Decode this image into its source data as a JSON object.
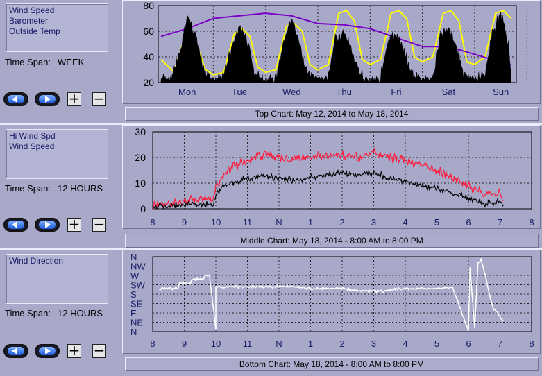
{
  "panels": {
    "top": {
      "legend": [
        "Wind Speed",
        "Barometer",
        "Outside Temp"
      ],
      "time_span_label": "Time Span:",
      "time_span_value": "WEEK",
      "caption": "Top Chart:  May 12, 2014  to  May 18, 2014"
    },
    "middle": {
      "legend": [
        "Hi Wind Spd",
        "Wind Speed"
      ],
      "time_span_label": "Time Span:",
      "time_span_value": "12 HOURS",
      "caption": "Middle Chart:  May 18, 2014 - 8:00 AM  to  8:00 PM"
    },
    "bottom": {
      "legend": [
        "Wind Direction"
      ],
      "time_span_label": "Time Span:",
      "time_span_value": "12 HOURS",
      "caption": "Bottom Chart:  May 18, 2014 - 8:00 AM  to  8:00 PM"
    }
  },
  "buttons": {
    "plus": "+",
    "minus": "−"
  },
  "colors": {
    "background": "#a8a8c8",
    "plot_area": "#a8a8c8",
    "wind_speed": "#000000",
    "barometer": "#7a00c8",
    "outside_temp": "#ffff00",
    "hi_wind": "#ff1a3a",
    "wind_direction": "#ffffff",
    "axis_text": "#1a1a66"
  },
  "chart_data": [
    {
      "id": "top",
      "type": "line",
      "x_categories": [
        "Mon",
        "Tue",
        "Wed",
        "Thu",
        "Fri",
        "Sat",
        "Sun"
      ],
      "y_ticks": [
        20,
        40,
        60,
        80
      ],
      "ylim": [
        20,
        80
      ],
      "grid": true,
      "series": [
        {
          "name": "Outside Temp",
          "color": "#ffff00",
          "x": [
            0,
            0.25,
            0.4,
            0.55,
            0.7,
            0.85,
            1.0,
            1.2,
            1.4,
            1.55,
            1.7,
            1.85,
            2.0,
            2.2,
            2.4,
            2.55,
            2.7,
            2.85,
            3.0,
            3.2,
            3.4,
            3.55,
            3.7,
            3.85,
            4.0,
            4.2,
            4.4,
            4.55,
            4.7,
            4.85,
            5.0,
            5.2,
            5.4,
            5.55,
            5.7,
            5.85,
            6.0,
            6.2,
            6.4,
            6.55,
            6.7
          ],
          "values": [
            38,
            28,
            48,
            52,
            48,
            30,
            26,
            28,
            58,
            62,
            56,
            32,
            28,
            30,
            64,
            66,
            60,
            34,
            30,
            34,
            74,
            76,
            68,
            38,
            34,
            38,
            74,
            76,
            70,
            40,
            36,
            40,
            74,
            76,
            68,
            36,
            34,
            40,
            74,
            76,
            70
          ]
        },
        {
          "name": "Barometer",
          "color": "#7a00c8",
          "x": [
            0,
            0.5,
            1.0,
            1.5,
            2.0,
            2.5,
            3.0,
            3.5,
            4.0,
            4.5,
            5.0,
            5.5,
            6.0,
            6.5,
            6.7
          ],
          "values": [
            56,
            62,
            70,
            72,
            74,
            72,
            66,
            65,
            62,
            55,
            48,
            48,
            42,
            36,
            34
          ]
        },
        {
          "name": "Wind Speed",
          "color": "#000000",
          "x": [
            0,
            0.2,
            0.35,
            0.5,
            0.65,
            0.8,
            1.0,
            1.2,
            1.35,
            1.5,
            1.65,
            1.8,
            2.0,
            2.2,
            2.35,
            2.5,
            2.65,
            2.8,
            3.0,
            3.2,
            3.35,
            3.5,
            3.65,
            3.8,
            4.0,
            4.2,
            4.35,
            4.5,
            4.65,
            4.8,
            5.0,
            5.2,
            5.35,
            5.5,
            5.65,
            5.8,
            6.0,
            6.2,
            6.35,
            6.5,
            6.65,
            6.7
          ],
          "values": [
            22,
            24,
            40,
            72,
            60,
            30,
            22,
            24,
            48,
            66,
            52,
            26,
            21,
            24,
            52,
            70,
            50,
            28,
            22,
            24,
            56,
            58,
            44,
            26,
            22,
            24,
            52,
            58,
            46,
            26,
            22,
            24,
            58,
            64,
            48,
            26,
            22,
            26,
            60,
            74,
            50,
            22
          ]
        }
      ]
    },
    {
      "id": "middle",
      "type": "line",
      "x_tick_labels": [
        "8",
        "9",
        "10",
        "11",
        "N",
        "1",
        "2",
        "3",
        "4",
        "5",
        "6",
        "7",
        "8"
      ],
      "y_ticks": [
        0,
        10,
        20,
        30
      ],
      "ylim": [
        0,
        30
      ],
      "grid": true,
      "series": [
        {
          "name": "Hi Wind Spd",
          "color": "#ff1a3a",
          "x": [
            8,
            8.5,
            9,
            9.5,
            9.9,
            10.0,
            10.2,
            10.5,
            11,
            11.5,
            12,
            12.5,
            13,
            13.5,
            14,
            14.5,
            15,
            15.5,
            16,
            16.5,
            17,
            17.5,
            18,
            18.5,
            19,
            19.1
          ],
          "values": [
            1.5,
            2,
            3,
            4,
            3,
            8,
            13,
            16,
            19,
            21,
            20,
            19,
            20,
            21,
            21,
            20,
            22,
            20,
            19,
            17,
            15,
            12,
            9,
            6,
            6,
            3
          ]
        },
        {
          "name": "Wind Speed",
          "color": "#000000",
          "x": [
            8,
            8.5,
            9,
            9.5,
            9.9,
            10.0,
            10.2,
            10.5,
            11,
            11.5,
            12,
            12.5,
            13,
            13.5,
            14,
            14.5,
            15,
            15.5,
            16,
            16.5,
            17,
            17.5,
            18,
            18.5,
            19,
            19.1
          ],
          "values": [
            0.5,
            1,
            1.5,
            2,
            1.5,
            5,
            9,
            10,
            12,
            13,
            12,
            11,
            12,
            13,
            14,
            13,
            14,
            12,
            11,
            9,
            8,
            6,
            4,
            2,
            3,
            1
          ]
        }
      ]
    },
    {
      "id": "bottom",
      "type": "line",
      "x_tick_labels": [
        "8",
        "9",
        "10",
        "11",
        "N",
        "1",
        "2",
        "3",
        "4",
        "5",
        "6",
        "7",
        "8"
      ],
      "y_tick_labels": [
        "N",
        "NW",
        "W",
        "SW",
        "S",
        "SE",
        "E",
        "NE",
        "N"
      ],
      "grid": true,
      "series": [
        {
          "name": "Wind Direction",
          "color": "#ffffff",
          "x": [
            8.2,
            8.8,
            8.85,
            9.2,
            9.25,
            9.6,
            9.65,
            9.8,
            10.0,
            10.0,
            10.1,
            10.5,
            11,
            11.5,
            12,
            12.5,
            13,
            13.5,
            14,
            14.5,
            15,
            15.3,
            15.6,
            16,
            16.5,
            17,
            17.5,
            18.0,
            18.05,
            18.2,
            18.3,
            18.4,
            18.5,
            18.6,
            18.7,
            18.8,
            18.9,
            19.0,
            19.1
          ],
          "values": [
            4.6,
            4.6,
            5.2,
            5.2,
            5.6,
            5.6,
            6.0,
            6.0,
            0.2,
            4.8,
            4.8,
            4.8,
            4.8,
            4.8,
            4.8,
            4.8,
            4.6,
            4.6,
            4.6,
            4.4,
            4.3,
            4.3,
            4.5,
            4.6,
            4.6,
            4.6,
            4.7,
            0.1,
            6.8,
            0.3,
            7.4,
            7.6,
            6.4,
            5.0,
            3.5,
            2.4,
            2.1,
            1.6,
            1.2
          ]
        }
      ]
    }
  ]
}
